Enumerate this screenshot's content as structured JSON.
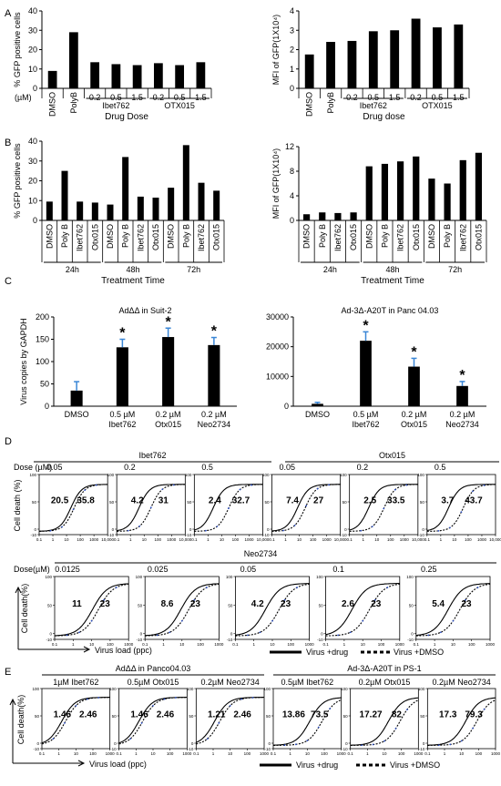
{
  "panels": {
    "A": {
      "letter": "A",
      "charts": [
        {
          "type": "bar",
          "ylabel": "% GFP positive cells",
          "ylim": [
            0,
            40
          ],
          "yticks": [
            "0",
            "10",
            "20",
            "30",
            "40"
          ],
          "unit_label": "(µM)",
          "categories": [
            "DMSO",
            "PolyB",
            "0.2",
            "0.5",
            "1.5",
            "0.2",
            "0.5",
            "1.5"
          ],
          "rotated": [
            true,
            true,
            false,
            false,
            false,
            false,
            false,
            false
          ],
          "values": [
            9,
            29,
            13.5,
            12.5,
            12,
            13,
            12,
            13.5
          ],
          "groups": [
            {
              "label": "Ibet762",
              "from": 2,
              "to": 4
            },
            {
              "label": "OTX015",
              "from": 5,
              "to": 7
            }
          ],
          "xlabel": "Drug Dose"
        },
        {
          "type": "bar",
          "ylabel": "MFI of GFP(1X10⁴)",
          "ylim": [
            0,
            4
          ],
          "yticks": [
            "0",
            "1",
            "2",
            "3",
            "4"
          ],
          "categories": [
            "DMSO",
            "PolyB",
            "0.2",
            "0.5",
            "1.5",
            "0.2",
            "0.5",
            "1.5"
          ],
          "rotated": [
            true,
            true,
            false,
            false,
            false,
            false,
            false,
            false
          ],
          "values": [
            1.75,
            2.4,
            2.45,
            2.95,
            3.0,
            3.6,
            3.15,
            3.3
          ],
          "groups": [
            {
              "label": "Ibet762",
              "from": 2,
              "to": 4
            },
            {
              "label": "OTX015",
              "from": 5,
              "to": 7
            }
          ],
          "xlabel": "Drug dose"
        }
      ]
    },
    "B": {
      "letter": "B",
      "charts": [
        {
          "type": "bar",
          "ylabel": "% GFP positive cells",
          "ylim": [
            0,
            40
          ],
          "yticks": [
            "0",
            "10",
            "20",
            "30",
            "40"
          ],
          "categories": [
            "DMSO",
            "Poly B",
            "Ibet762",
            "Otx015",
            "DMSO",
            "Poly B",
            "Ibet762",
            "Otx015",
            "DMSO",
            "Poly B",
            "Ibet762",
            "Otx015"
          ],
          "values": [
            9.5,
            25,
            9.5,
            9,
            8,
            32,
            12,
            11.5,
            16.5,
            38,
            19,
            15
          ],
          "groups": [
            {
              "label": "24h",
              "from": 0,
              "to": 3
            },
            {
              "label": "48h",
              "from": 4,
              "to": 7
            },
            {
              "label": "72h",
              "from": 8,
              "to": 11
            }
          ],
          "xlabel": "Treatment Time"
        },
        {
          "type": "bar",
          "ylabel": "MFI of GFP(1X10⁴)",
          "ylim": [
            0,
            12
          ],
          "yticks": [
            "0",
            "4",
            "8",
            "12"
          ],
          "categories": [
            "DMSO",
            "Poly B",
            "Ibet762",
            "Otx015",
            "DMSO",
            "Poly B",
            "Ibet762",
            "Otx015",
            "DMSO",
            "Poly B",
            "Ibet762",
            "Otx015"
          ],
          "values": [
            1,
            1.3,
            1.2,
            1.3,
            8.8,
            9.2,
            9.6,
            10.4,
            6.8,
            6,
            9.8,
            11
          ],
          "groups": [
            {
              "label": "24h",
              "from": 0,
              "to": 3
            },
            {
              "label": "48h",
              "from": 4,
              "to": 7
            },
            {
              "label": "72h",
              "from": 8,
              "to": 11
            }
          ],
          "xlabel": "Treatment Time"
        }
      ]
    },
    "C": {
      "letter": "C",
      "charts": [
        {
          "type": "bar",
          "title": "AdΔΔ in Suit-2",
          "ylabel": "Virus copies by GAPDH",
          "ylim": [
            0,
            200
          ],
          "yticks": [
            "0",
            "50",
            "100",
            "150",
            "200"
          ],
          "categories": [
            [
              "DMSO"
            ],
            [
              "0.5 µM",
              "Ibet762"
            ],
            [
              "0.2 µM",
              "Otx015"
            ],
            [
              "0.2 µM",
              "Neo2734"
            ]
          ],
          "values": [
            35,
            132,
            155,
            137
          ],
          "errors": [
            20,
            18,
            20,
            17
          ],
          "star": [
            false,
            true,
            true,
            true
          ],
          "star_label": "*"
        },
        {
          "type": "bar",
          "title": "Ad-3Δ-A20T in Panc 04.03",
          "ylim": [
            0,
            30000
          ],
          "yticks": [
            "0",
            "10000",
            "20000",
            "30000"
          ],
          "categories": [
            [
              "DMSO"
            ],
            [
              "0.5 µM",
              "Ibet762"
            ],
            [
              "0.2 µM",
              "Otx015"
            ],
            [
              "0.2 µM",
              "Neo2734"
            ]
          ],
          "values": [
            800,
            22000,
            13300,
            6800
          ],
          "errors": [
            500,
            3000,
            2800,
            1500
          ],
          "star": [
            false,
            true,
            true,
            true
          ],
          "star_label": "*"
        }
      ]
    },
    "D": {
      "letter": "D",
      "row1": {
        "dose_label": "Dose (µM)",
        "drugs": [
          {
            "label": "Ibet762",
            "from": 0,
            "to": 2
          },
          {
            "label": "Otx015",
            "from": 3,
            "to": 5
          }
        ],
        "doses": [
          "0.05",
          "0.2",
          "0.5",
          "0.05",
          "0.2",
          "0.5"
        ],
        "ylabel": "Cell death (%)",
        "xticks": [
          "0.1",
          "1",
          "10",
          "100",
          "1000",
          "10,000"
        ],
        "drug_ec50": [
          20.5,
          4.2,
          2.4,
          7.4,
          2.5,
          3.7
        ],
        "dmso_ec50": [
          35.8,
          31,
          32.7,
          27,
          33.5,
          43.7
        ],
        "drug_labels": [
          "20.5",
          "4.2",
          "2.4",
          "7.4",
          "2.5",
          "3.7"
        ],
        "dmso_labels": [
          "35.8",
          "31",
          "32.7",
          "27",
          "33.5",
          "43.7"
        ]
      },
      "row2": {
        "title": "Neo2734",
        "dose_label": "Dose(µM)",
        "doses": [
          "0.0125",
          "0.025",
          "0.05",
          "0.1",
          "0.25"
        ],
        "ylabel": "Cell death(%)",
        "xticks": [
          "0.1",
          "1",
          "10",
          "100",
          "1000"
        ],
        "drug_ec50": [
          11,
          8.6,
          4.2,
          2.6,
          5.4
        ],
        "dmso_ec50": [
          23,
          23,
          23,
          23,
          23
        ],
        "drug_labels": [
          "11",
          "8.6",
          "4.2",
          "2.6",
          "5.4"
        ],
        "dmso_labels": [
          "23",
          "23",
          "23",
          "23",
          "23"
        ],
        "xlabel": "Virus load (ppc)",
        "legend_drug": "Virus +drug",
        "legend_dmso": "Virus +DMSO"
      }
    },
    "E": {
      "letter": "E",
      "groups": [
        {
          "label": "AdΔΔ in Panco04.03",
          "from": 0,
          "to": 2
        },
        {
          "label": "Ad-3Δ-A20T in PS-1",
          "from": 3,
          "to": 5
        }
      ],
      "titles": [
        "1µM Ibet762",
        "0.5µM Otx015",
        "0.2µM Neo2734",
        "0.5µM Ibet762",
        "0.2µM Otx015",
        "0.2µM Neo2734"
      ],
      "ylabel": "Cell death(%)",
      "xticks": [
        "0.1",
        "1",
        "10",
        "100",
        "1000"
      ],
      "drug_ec50": [
        1.46,
        1.46,
        1.21,
        13.86,
        17.27,
        17.3
      ],
      "dmso_ec50": [
        2.46,
        2.46,
        2.46,
        73.5,
        82,
        79.3
      ],
      "drug_labels": [
        "1.46",
        "1.46",
        "1.21",
        "13.86",
        "17.27",
        "17.3"
      ],
      "dmso_labels": [
        "2.46",
        "2.46",
        "2.46",
        "73.5",
        "82",
        "79.3"
      ],
      "xlabel": "Virus load (ppc)",
      "legend_drug": "Virus +drug",
      "legend_dmso": "Virus +DMSO"
    }
  },
  "colors": {
    "bar": "#000000",
    "error_bar": "#3a86d6",
    "dmso_marker": "#2b4fc4"
  }
}
